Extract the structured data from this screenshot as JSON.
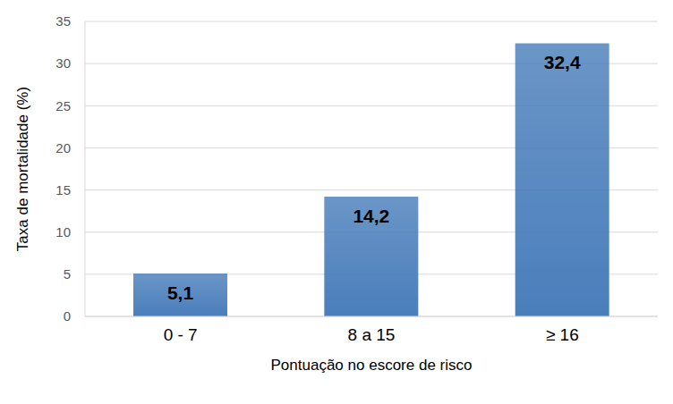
{
  "chart_data": {
    "type": "bar",
    "categories": [
      "0 - 7",
      "8 a 15",
      "≥ 16"
    ],
    "values": [
      5.1,
      14.2,
      32.4
    ],
    "value_labels": [
      "5,1",
      "14,2",
      "32,4"
    ],
    "color": "#4a7ebb",
    "xlabel": "Pontuação no escore de risco",
    "ylabel": "Taxa de mortalidade (%)",
    "ylim": [
      0,
      35
    ],
    "yticks": [
      0,
      5,
      10,
      15,
      20,
      25,
      30,
      35
    ],
    "grid": true,
    "data_labels": true
  }
}
